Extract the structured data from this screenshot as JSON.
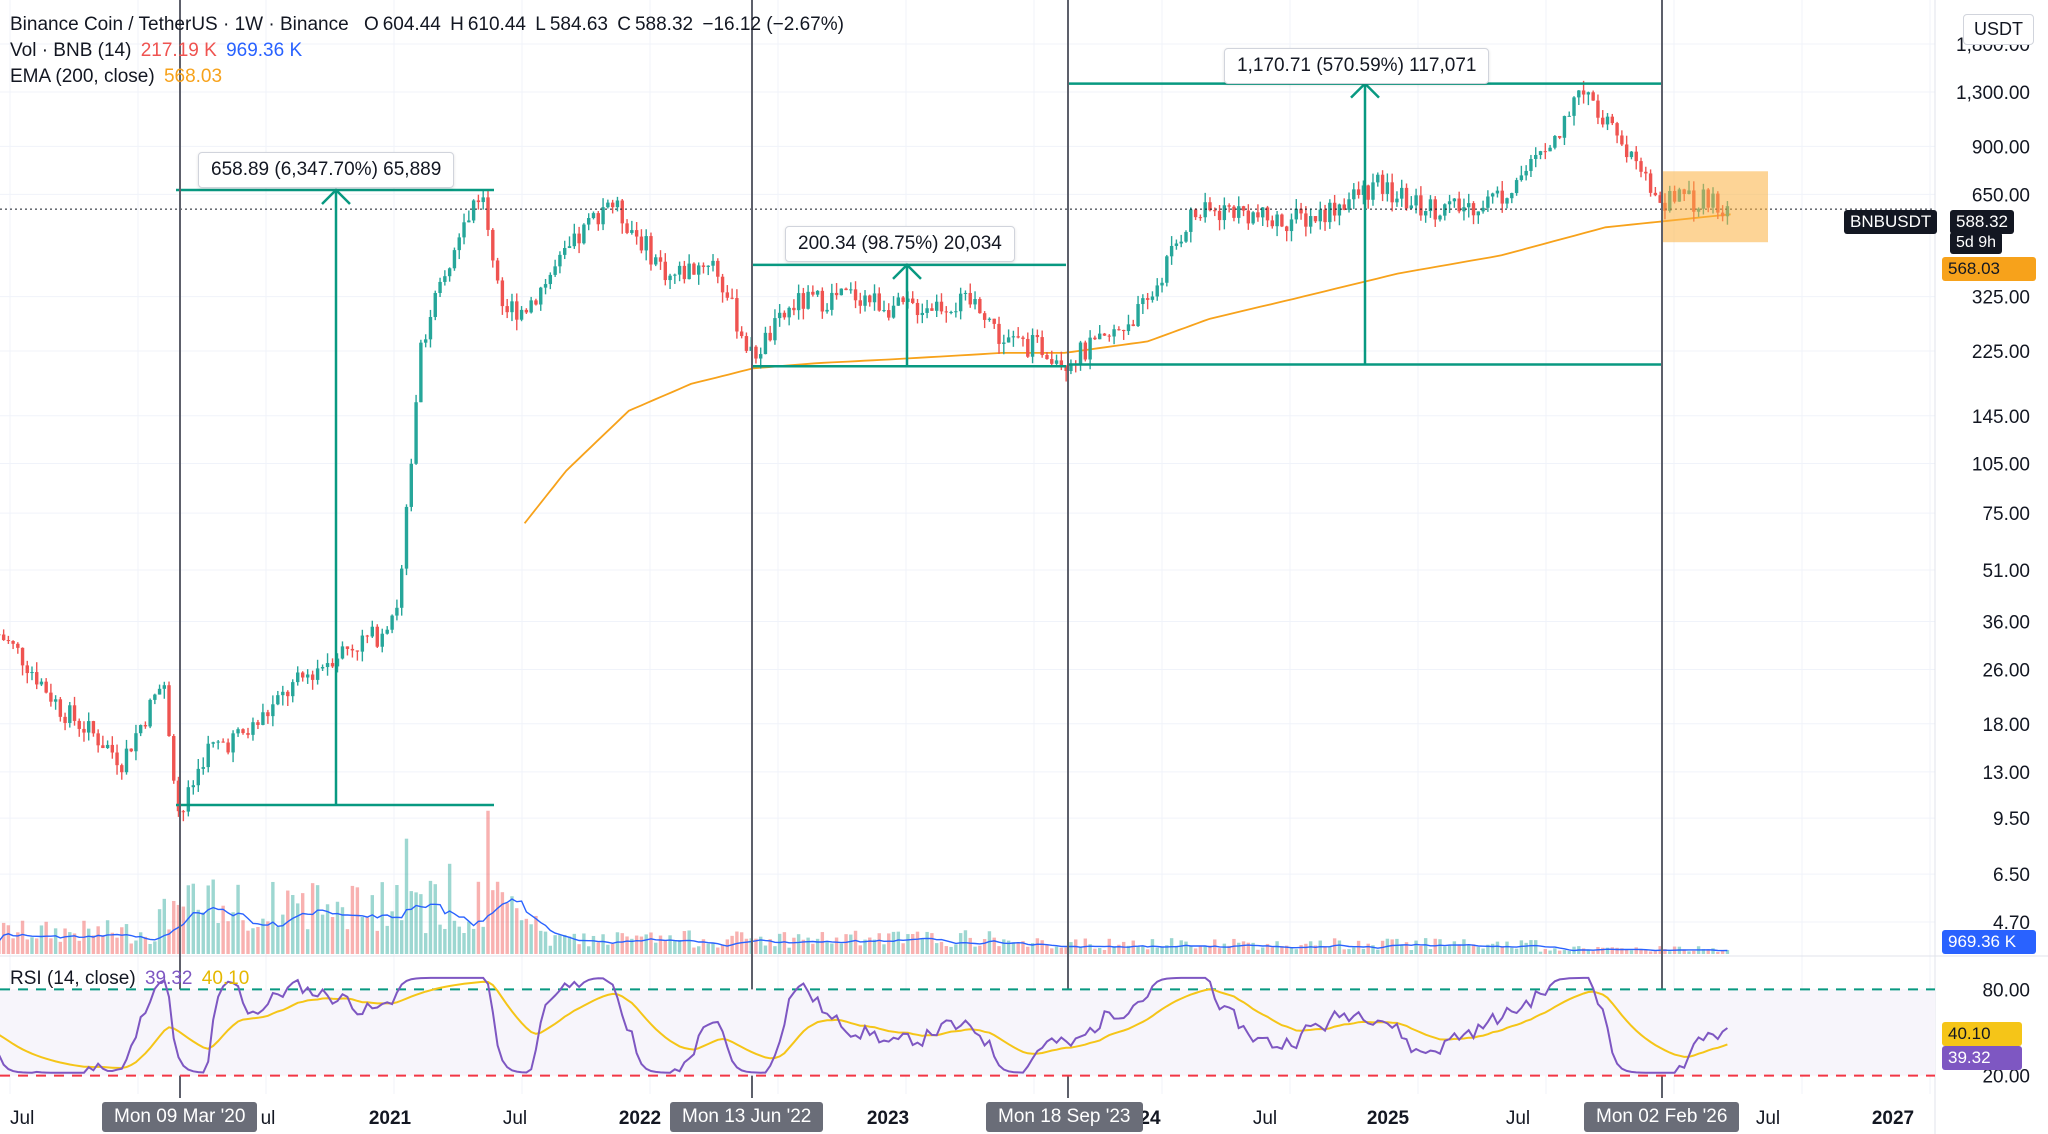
{
  "header": {
    "symbol_title": "Binance Coin / TetherUS · 1W · Binance",
    "ohlc": {
      "o_label": "O",
      "o": "604.44",
      "h_label": "H",
      "h": "610.44",
      "l_label": "L",
      "l": "584.63",
      "c_label": "C",
      "c": "588.32",
      "change": "−16.12 (−2.67%)"
    },
    "vol_label": "Vol · BNB (14)",
    "vol_value1": "217.19 K",
    "vol_value2": "969.36 K",
    "ema_label": "EMA (200, close)",
    "ema_value": "568.03",
    "rsi_label": "RSI (14, close)",
    "rsi_value1": "39.32",
    "rsi_value2": "40.10"
  },
  "unit": "USDT",
  "price_axis": {
    "ticks": [
      "1,800.00",
      "1,300.00",
      "900.00",
      "650.00",
      "325.00",
      "225.00",
      "145.00",
      "105.00",
      "75.00",
      "51.00",
      "36.00",
      "26.00",
      "18.00",
      "13.00",
      "9.50",
      "6.50",
      "4.70"
    ]
  },
  "price_tags": {
    "symbol": "BNBUSDT",
    "last": "588.32",
    "countdown": "5d 9h",
    "ema": "568.03",
    "vol": "969.36 K"
  },
  "rsi_axis": {
    "ticks": [
      "80.00",
      "20.00"
    ],
    "tag_ma": "40.10",
    "tag_rsi": "39.32"
  },
  "time_axis": {
    "labels": [
      "Jul",
      "2021",
      "Jul",
      "2022",
      "2023",
      "24",
      "Jul",
      "2025",
      "Jul",
      "Jul",
      "2027"
    ],
    "date_boxes": [
      "Mon 09 Mar '20",
      "Mon 13 Jun '22",
      "Mon 18 Sep '23",
      "Mon 02 Feb '26"
    ],
    "partial_label": "ul"
  },
  "measurements": [
    {
      "text": "658.89 (6,347.70%) 65,889"
    },
    {
      "text": "200.34 (98.75%) 20,034"
    },
    {
      "text": "1,170.71 (570.59%) 117,071"
    }
  ],
  "colors": {
    "up": "#26a69a",
    "down": "#ef5350",
    "ema": "#f7a21b",
    "vol_ma": "#2962ff",
    "rsi": "#7e57c2",
    "rsi_ma": "#f5c518",
    "measure": "#089981",
    "box": "#fbb040"
  },
  "chart_data": {
    "type": "line",
    "title": "Binance Coin / TetherUS · 1W · Binance",
    "ylabel": "USDT",
    "yscale": "log",
    "ylim": [
      4.7,
      1800
    ],
    "series": [
      {
        "name": "BNBUSDT",
        "points": [
          [
            "2019-06",
            33
          ],
          [
            "2019-07",
            29
          ],
          [
            "2019-09",
            20
          ],
          [
            "2019-11",
            16
          ],
          [
            "2019-12",
            14
          ],
          [
            "2020-02",
            24
          ],
          [
            "2020-03-09",
            9.4
          ],
          [
            "2020-04",
            15
          ],
          [
            "2020-06",
            17
          ],
          [
            "2020-08",
            23
          ],
          [
            "2020-10",
            29
          ],
          [
            "2020-12",
            33
          ],
          [
            "2021-01",
            42
          ],
          [
            "2021-02",
            240
          ],
          [
            "2021-04",
            500
          ],
          [
            "2021-05-10",
            680
          ],
          [
            "2021-06",
            300
          ],
          [
            "2021-07",
            300
          ],
          [
            "2021-09",
            430
          ],
          [
            "2021-11",
            630
          ],
          [
            "2021-12",
            530
          ],
          [
            "2022-02",
            370
          ],
          [
            "2022-04",
            420
          ],
          [
            "2022-06-13",
            215
          ],
          [
            "2022-08",
            310
          ],
          [
            "2022-11",
            330
          ],
          [
            "2023-01",
            300
          ],
          [
            "2023-03",
            310
          ],
          [
            "2023-05",
            310
          ],
          [
            "2023-06",
            240
          ],
          [
            "2023-08",
            230
          ],
          [
            "2023-09-18",
            212
          ],
          [
            "2023-11",
            240
          ],
          [
            "2024-01",
            310
          ],
          [
            "2024-03",
            560
          ],
          [
            "2024-05",
            590
          ],
          [
            "2024-07",
            540
          ],
          [
            "2024-09",
            560
          ],
          [
            "2024-12",
            690
          ],
          [
            "2025-02",
            600
          ],
          [
            "2025-04",
            590
          ],
          [
            "2025-06",
            650
          ],
          [
            "2025-08",
            850
          ],
          [
            "2025-10",
            1370
          ],
          [
            "2025-12",
            870
          ],
          [
            "2026-02-02",
            630
          ],
          [
            "2026-03",
            620
          ],
          [
            "2026-04",
            640
          ],
          [
            "2026-05",
            588.32
          ]
        ]
      },
      {
        "name": "EMA (200, close)",
        "points": [
          [
            "2021-07",
            70
          ],
          [
            "2021-09",
            100
          ],
          [
            "2021-12",
            150
          ],
          [
            "2022-03",
            180
          ],
          [
            "2022-06",
            200
          ],
          [
            "2022-09",
            207
          ],
          [
            "2023-01",
            213
          ],
          [
            "2023-06",
            222
          ],
          [
            "2023-09",
            222
          ],
          [
            "2024-01",
            240
          ],
          [
            "2024-04",
            280
          ],
          [
            "2024-08",
            320
          ],
          [
            "2025-01",
            380
          ],
          [
            "2025-06",
            430
          ],
          [
            "2025-11",
            520
          ],
          [
            "2026-05",
            568.03
          ]
        ]
      }
    ],
    "measurements": [
      {
        "from": 10.38,
        "to": 669.27,
        "change": 658.89,
        "percent": 6347.7,
        "ticks": 65889
      },
      {
        "from": 202.84,
        "to": 403.18,
        "change": 200.34,
        "percent": 98.75,
        "ticks": 20034
      },
      {
        "from": 205.19,
        "to": 1375.9,
        "change": 1170.71,
        "percent": 570.59,
        "ticks": 117071
      }
    ],
    "rsi": {
      "name": "RSI (14, close)",
      "ylim": [
        20,
        80
      ],
      "last": 39.32,
      "ma_last": 40.1
    },
    "volume": {
      "name": "Vol · BNB (14)",
      "last": "217.19 K",
      "ma": "969.36 K"
    }
  }
}
